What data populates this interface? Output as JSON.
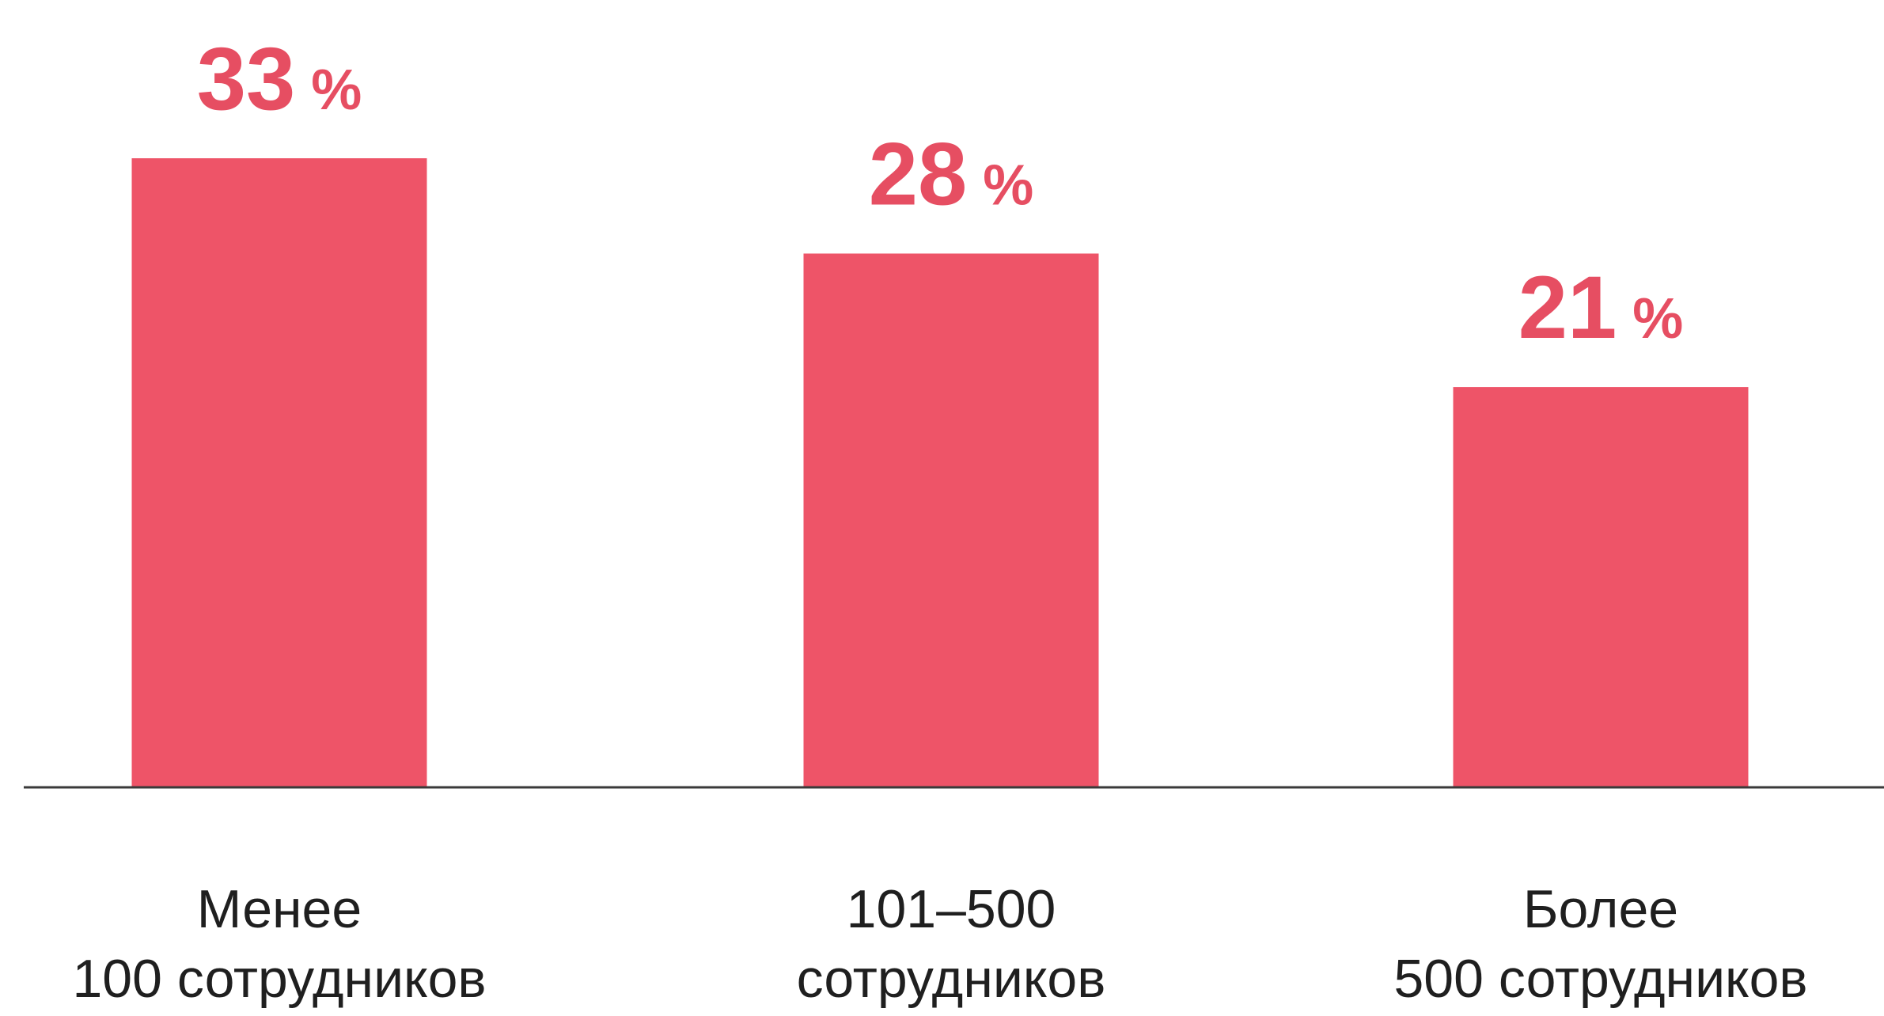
{
  "chart_data": {
    "type": "bar",
    "categories": [
      [
        "Менее",
        "100 сотрудников"
      ],
      [
        "101–500",
        "сотрудников"
      ],
      [
        "Более",
        "500 сотрудников"
      ]
    ],
    "values": [
      33,
      28,
      21
    ],
    "value_suffix": " %",
    "ylim": [
      0,
      33
    ],
    "grid": false,
    "legend": "none",
    "title": "",
    "xlabel": "",
    "ylabel": ""
  },
  "colors": {
    "bar": "#EE5468",
    "value_label": "#E64E62",
    "axis": "#3a3a3a",
    "category_text": "#1f1f1f"
  }
}
